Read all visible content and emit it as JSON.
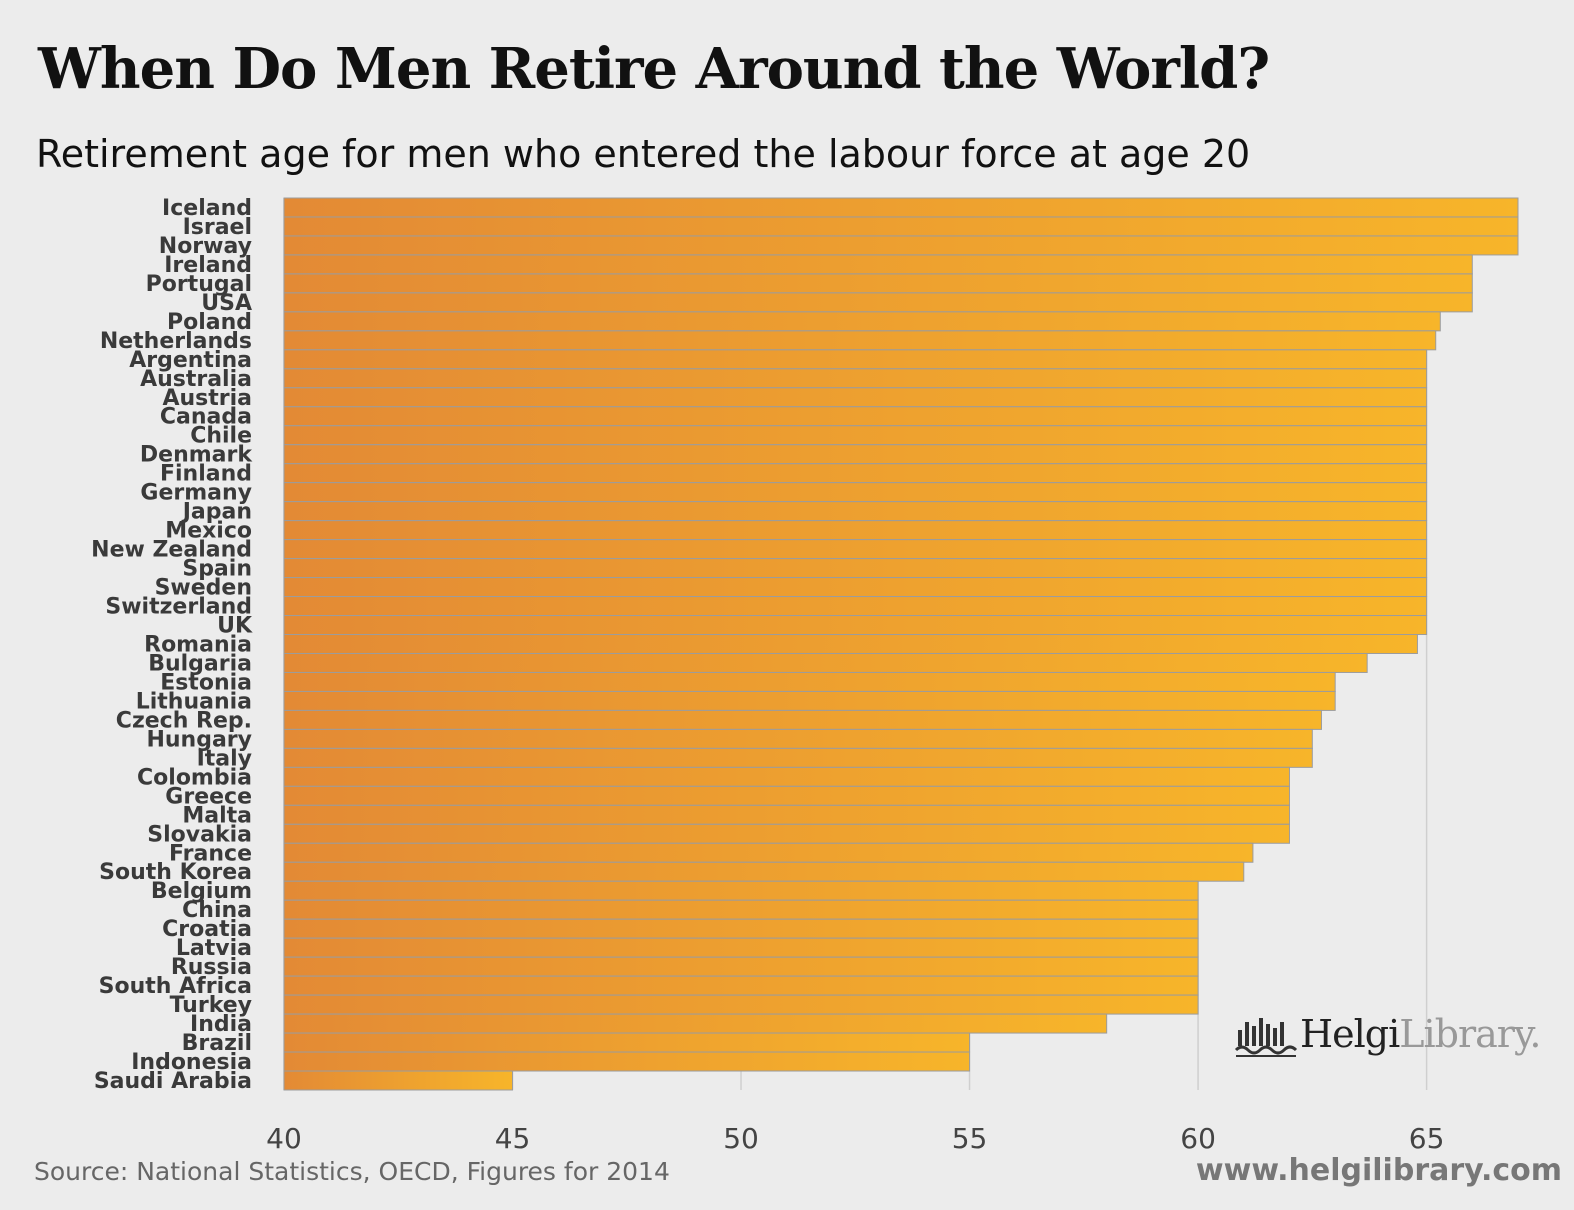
{
  "title": "When Do Men Retire Around the World?",
  "subtitle": "Retirement age for men who entered the labour force at age 20",
  "source": "Source: National Statistics, OECD, Figures for 2014",
  "website": "www.helgilibrary.com",
  "logo": {
    "brand_dark": "Helgi",
    "brand_light": "Library."
  },
  "colors": {
    "bar_start": "#e38a35",
    "bar_end": "#f7b52a",
    "separator": "#9c9c9c",
    "grid": "#cfcfcf",
    "background": "#ececec"
  },
  "chart_data": {
    "type": "bar",
    "orientation": "horizontal",
    "title": "When Do Men Retire Around the World?",
    "subtitle": "Retirement age for men who entered the labour force at age 20",
    "xlabel": "",
    "ylabel": "",
    "xlim": [
      40,
      67
    ],
    "xticks": [
      40,
      45,
      50,
      55,
      60,
      65
    ],
    "grid": true,
    "categories": [
      "Iceland",
      "Israel",
      "Norway",
      "Ireland",
      "Portugal",
      "USA",
      "Poland",
      "Netherlands",
      "Argentina",
      "Australia",
      "Austria",
      "Canada",
      "Chile",
      "Denmark",
      "Finland",
      "Germany",
      "Japan",
      "Mexico",
      "New Zealand",
      "Spain",
      "Sweden",
      "Switzerland",
      "UK",
      "Romania",
      "Bulgaria",
      "Estonia",
      "Lithuania",
      "Czech Rep.",
      "Hungary",
      "Italy",
      "Colombia",
      "Greece",
      "Malta",
      "Slovakia",
      "France",
      "South Korea",
      "Belgium",
      "China",
      "Croatia",
      "Latvia",
      "Russia",
      "South Africa",
      "Turkey",
      "India",
      "Brazil",
      "Indonesia",
      "Saudi Arabia"
    ],
    "values": [
      67,
      67,
      67,
      66,
      66,
      66,
      65.3,
      65.2,
      65,
      65,
      65,
      65,
      65,
      65,
      65,
      65,
      65,
      65,
      65,
      65,
      65,
      65,
      65,
      64.8,
      63.7,
      63,
      63,
      62.7,
      62.5,
      62.5,
      62,
      62,
      62,
      62,
      61.2,
      61,
      60,
      60,
      60,
      60,
      60,
      60,
      60,
      58,
      55,
      55,
      45
    ]
  }
}
